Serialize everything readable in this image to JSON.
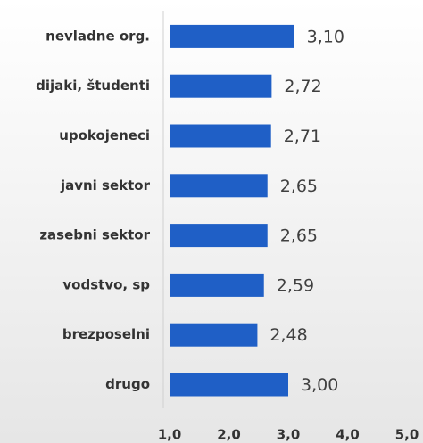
{
  "chart_data": {
    "type": "barh",
    "categories": [
      "nevladne org.",
      "dijaki, študenti",
      "upokojeneci",
      "javni sektor",
      "zasebni sektor",
      "vodstvo, sp",
      "brezposelni",
      "drugo"
    ],
    "values": [
      3.1,
      2.72,
      2.71,
      2.65,
      2.65,
      2.59,
      2.48,
      3.0
    ],
    "value_labels": [
      "3,10",
      "2,72",
      "2,71",
      "2,65",
      "2,65",
      "2,59",
      "2,48",
      "3,00"
    ],
    "color": "#1f5fc6",
    "xlim": [
      1,
      5
    ],
    "xticks": [
      {
        "value": 1,
        "label": "1,0"
      },
      {
        "value": 2,
        "label": "2,0"
      },
      {
        "value": 3,
        "label": "3,0"
      },
      {
        "value": 4,
        "label": "4,0"
      },
      {
        "value": 5,
        "label": "5,0"
      }
    ]
  }
}
